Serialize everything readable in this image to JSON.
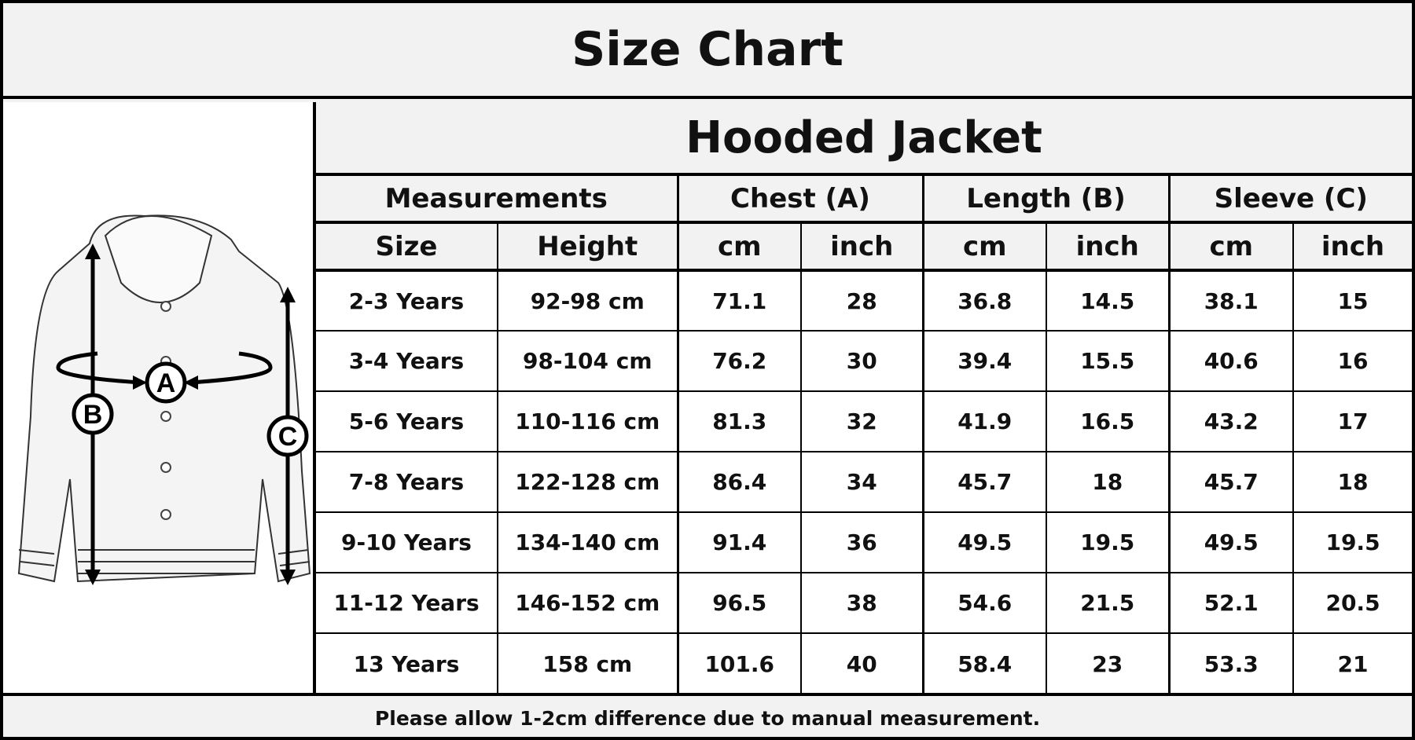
{
  "title": "Size Chart",
  "product": "Hooded Jacket",
  "groups": [
    "Measurements",
    "Chest (A)",
    "Length (B)",
    "Sleeve (C)"
  ],
  "subheaders": [
    "Size",
    "Height",
    "cm",
    "inch",
    "cm",
    "inch",
    "cm",
    "inch"
  ],
  "rows": [
    [
      "2-3 Years",
      "92-98 cm",
      "71.1",
      "28",
      "36.8",
      "14.5",
      "38.1",
      "15"
    ],
    [
      "3-4 Years",
      "98-104 cm",
      "76.2",
      "30",
      "39.4",
      "15.5",
      "40.6",
      "16"
    ],
    [
      "5-6 Years",
      "110-116 cm",
      "81.3",
      "32",
      "41.9",
      "16.5",
      "43.2",
      "17"
    ],
    [
      "7-8 Years",
      "122-128 cm",
      "86.4",
      "34",
      "45.7",
      "18",
      "45.7",
      "18"
    ],
    [
      "9-10 Years",
      "134-140 cm",
      "91.4",
      "36",
      "49.5",
      "19.5",
      "49.5",
      "19.5"
    ],
    [
      "11-12 Years",
      "146-152 cm",
      "96.5",
      "38",
      "54.6",
      "21.5",
      "52.1",
      "20.5"
    ],
    [
      "13 Years",
      "158 cm",
      "101.6",
      "40",
      "58.4",
      "23",
      "53.3",
      "21"
    ]
  ],
  "diagram": {
    "labels": [
      "A",
      "B",
      "C"
    ]
  },
  "footer": "Please allow 1-2cm difference due to manual measurement."
}
